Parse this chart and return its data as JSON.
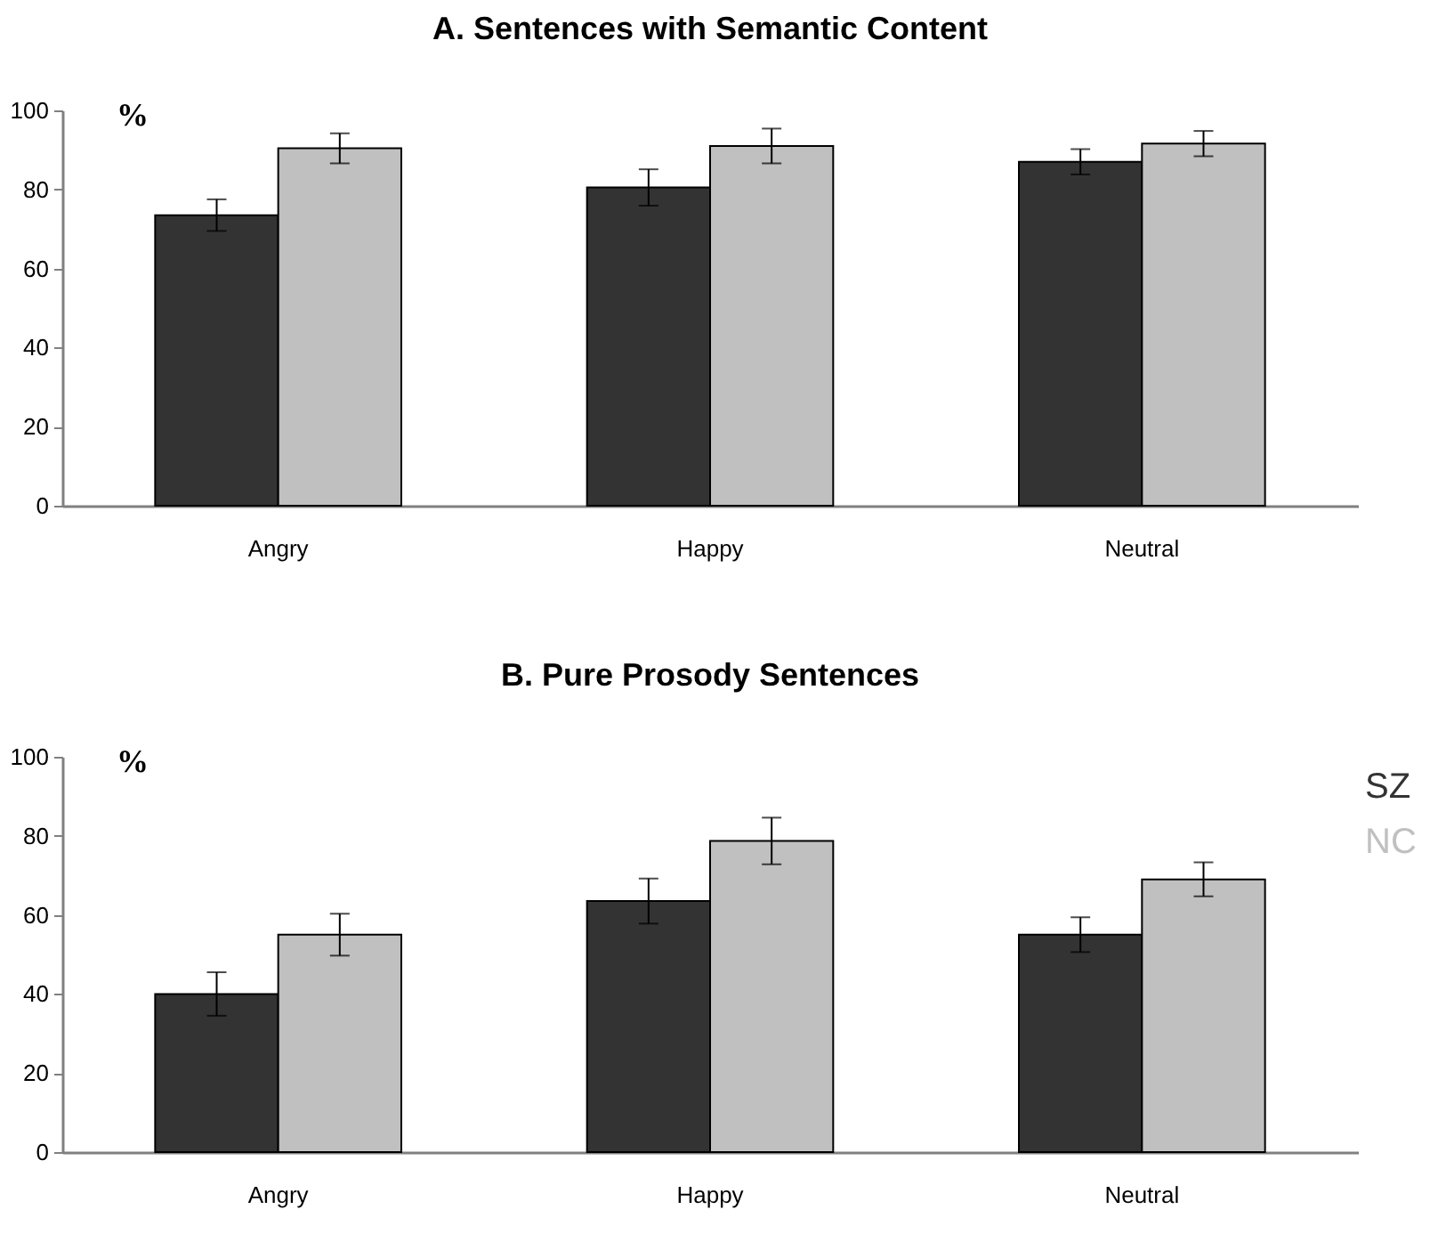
{
  "chart_data": [
    {
      "type": "bar",
      "title": "A. Sentences with Semantic Content",
      "ylabel": "%",
      "categories": [
        "Angry",
        "Happy",
        "Neutral"
      ],
      "series": [
        {
          "color": "#333333",
          "values": [
            73.5,
            80.5,
            87
          ],
          "errors": [
            4,
            4.6,
            3.2
          ]
        },
        {
          "color": "#c0c0c0",
          "values": [
            90.4,
            91,
            91.6
          ],
          "errors": [
            3.8,
            4.4,
            3.2
          ]
        }
      ],
      "ylim": [
        0,
        100
      ],
      "yticks": [
        0,
        20,
        40,
        60,
        80,
        100
      ],
      "grid": false
    },
    {
      "type": "bar",
      "title": "B. Pure Prosody Sentences",
      "ylabel": "%",
      "categories": [
        "Angry",
        "Happy",
        "Neutral"
      ],
      "series": [
        {
          "name": "SZ",
          "color": "#333333",
          "values": [
            40,
            63.5,
            55
          ],
          "errors": [
            5.5,
            5.7,
            4.4
          ]
        },
        {
          "name": "NC",
          "color": "#c0c0c0",
          "values": [
            55,
            78.7,
            69
          ],
          "errors": [
            5.3,
            5.9,
            4.3
          ]
        }
      ],
      "ylim": [
        0,
        100
      ],
      "yticks": [
        0,
        20,
        40,
        60,
        80,
        100
      ],
      "grid": false
    }
  ]
}
